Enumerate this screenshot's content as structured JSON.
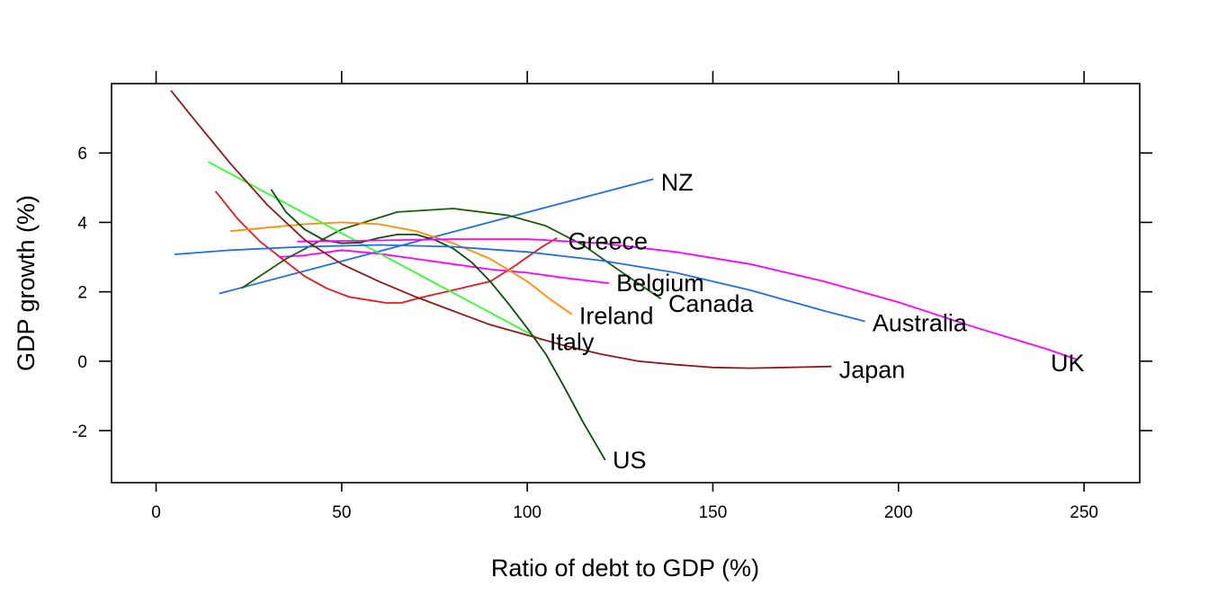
{
  "chart_data": {
    "type": "line",
    "title": "",
    "xlabel": "Ratio of debt to GDP (%)",
    "ylabel": "GDP growth (%)",
    "xlim": [
      -12,
      265
    ],
    "ylim": [
      -3.5,
      8.0
    ],
    "xticks": [
      0,
      50,
      100,
      150,
      200,
      250
    ],
    "yticks": [
      -2,
      0,
      2,
      4,
      6
    ],
    "grid": false,
    "legend": "none",
    "series": [
      {
        "name": "NZ",
        "color": "#1f6fe0",
        "x": [
          17,
          134
        ],
        "y": [
          1.95,
          5.25
        ],
        "label_xy": [
          136,
          5.15
        ]
      },
      {
        "name": "Greece",
        "color": "#e41a1c",
        "x": [
          16,
          22,
          28,
          34,
          40,
          46,
          52,
          58,
          62,
          66,
          72,
          78,
          84,
          90,
          96,
          100,
          104,
          108
        ],
        "y": [
          4.9,
          4.1,
          3.45,
          2.95,
          2.45,
          2.1,
          1.85,
          1.75,
          1.68,
          1.68,
          1.85,
          2.0,
          2.15,
          2.3,
          2.7,
          3.0,
          3.3,
          3.55
        ],
        "label_xy": [
          111,
          3.45
        ]
      },
      {
        "name": "Belgium",
        "color": "#ff00ff",
        "x": [
          33,
          40,
          50,
          60,
          70,
          80,
          90,
          100,
          110,
          122
        ],
        "y": [
          3.0,
          3.05,
          3.2,
          3.1,
          2.95,
          2.8,
          2.65,
          2.55,
          2.4,
          2.25
        ],
        "label_xy": [
          124,
          2.25
        ]
      },
      {
        "name": "Canada",
        "color": "#1a5e0a",
        "x": [
          23,
          35,
          50,
          65,
          80,
          95,
          105,
          115,
          125,
          136
        ],
        "y": [
          2.1,
          2.95,
          3.8,
          4.3,
          4.4,
          4.2,
          3.9,
          3.35,
          2.6,
          1.8
        ],
        "label_xy": [
          138,
          1.65
        ]
      },
      {
        "name": "Ireland",
        "color": "#ff8c00",
        "x": [
          20,
          30,
          40,
          50,
          60,
          70,
          80,
          90,
          100,
          106,
          112
        ],
        "y": [
          3.75,
          3.85,
          3.95,
          4.0,
          3.95,
          3.75,
          3.4,
          2.95,
          2.3,
          1.8,
          1.35
        ],
        "label_xy": [
          114,
          1.3
        ]
      },
      {
        "name": "Italy",
        "color": "#33ff33",
        "x": [
          14,
          104
        ],
        "y": [
          5.75,
          0.6
        ],
        "label_xy": [
          106,
          0.55
        ]
      },
      {
        "name": "US",
        "color": "#0b4d08",
        "x": [
          31,
          35,
          40,
          45,
          50,
          55,
          60,
          65,
          70,
          75,
          80,
          85,
          90,
          95,
          100,
          105,
          110,
          115,
          121
        ],
        "y": [
          4.95,
          4.3,
          3.8,
          3.5,
          3.4,
          3.42,
          3.55,
          3.65,
          3.65,
          3.5,
          3.25,
          2.85,
          2.3,
          1.65,
          0.95,
          0.2,
          -0.75,
          -1.75,
          -2.85
        ],
        "label_xy": [
          123,
          -2.85
        ]
      },
      {
        "name": "Australia",
        "color": "#1f6fe0",
        "x": [
          5,
          20,
          40,
          60,
          80,
          100,
          120,
          140,
          160,
          180,
          191
        ],
        "y": [
          3.08,
          3.2,
          3.3,
          3.35,
          3.3,
          3.15,
          2.9,
          2.55,
          2.05,
          1.45,
          1.15
        ],
        "label_xy": [
          193,
          1.1
        ]
      },
      {
        "name": "UK",
        "color": "#ff00ff",
        "x": [
          38,
          60,
          80,
          100,
          120,
          140,
          160,
          180,
          200,
          220,
          240,
          248
        ],
        "y": [
          3.45,
          3.48,
          3.52,
          3.52,
          3.4,
          3.15,
          2.8,
          2.3,
          1.7,
          1.0,
          0.35,
          0.05
        ],
        "label_xy": [
          241,
          -0.05
        ]
      },
      {
        "name": "Japan",
        "color": "#8b1a1a",
        "x": [
          4,
          10,
          20,
          30,
          40,
          50,
          60,
          70,
          80,
          90,
          100,
          110,
          120,
          130,
          140,
          150,
          160,
          170,
          182
        ],
        "y": [
          7.8,
          7.0,
          5.7,
          4.5,
          3.5,
          2.8,
          2.3,
          1.85,
          1.45,
          1.05,
          0.75,
          0.45,
          0.2,
          0.0,
          -0.1,
          -0.18,
          -0.2,
          -0.18,
          -0.15
        ],
        "label_xy": [
          184,
          -0.25
        ]
      }
    ]
  }
}
